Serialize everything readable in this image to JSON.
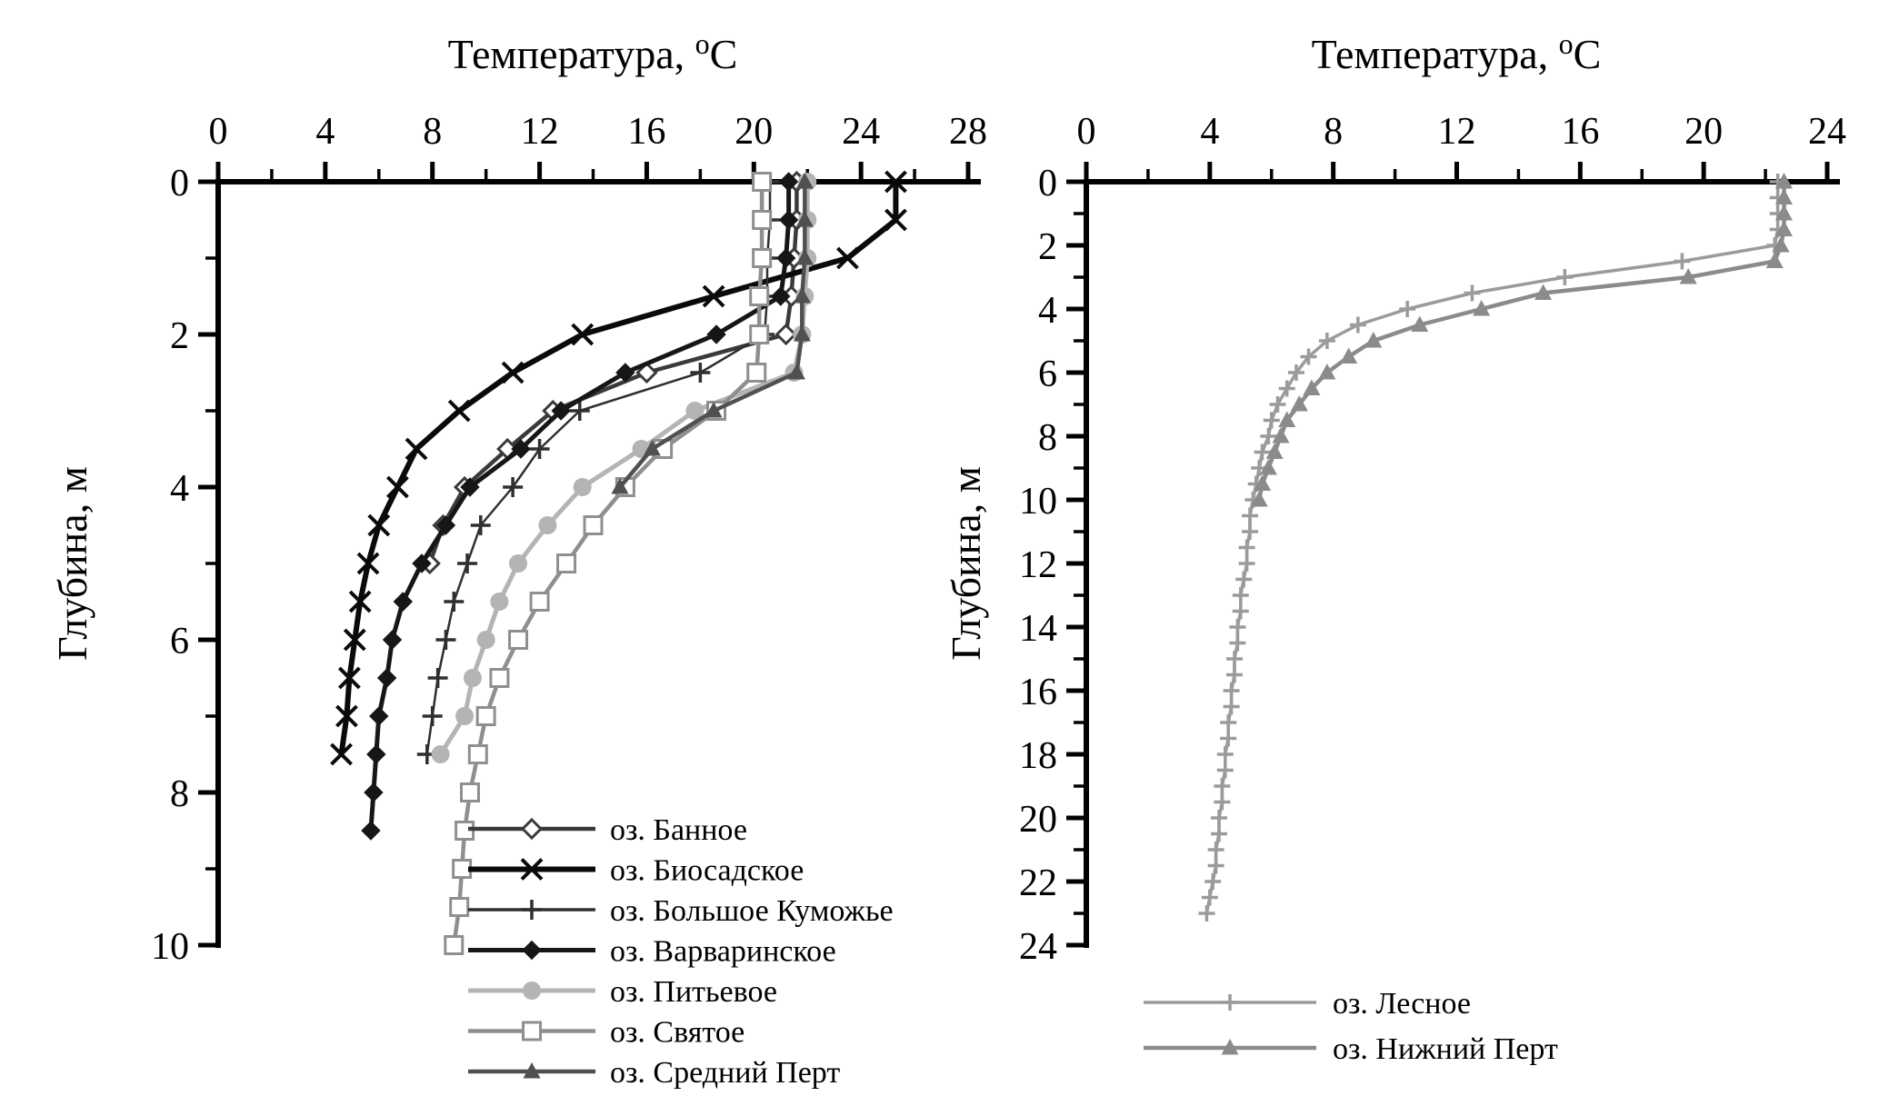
{
  "page": {
    "background": "#ffffff"
  },
  "chart_data": [
    {
      "id": "left",
      "type": "line",
      "title": {
        "prefix": "Температура,",
        "sup": "о",
        "suffix": "С"
      },
      "ylabel": "Глубина, м",
      "xlim": [
        0,
        28
      ],
      "ylim": [
        0,
        10
      ],
      "x_major_ticks": [
        0,
        4,
        8,
        12,
        16,
        20,
        24,
        28
      ],
      "x_minor_step": 2,
      "y_major_ticks": [
        0,
        2,
        4,
        6,
        8,
        10
      ],
      "y_minor_step": 1,
      "x_axis_position": "top",
      "grid": false,
      "legend_position": "inside-bottom",
      "series": [
        {
          "name": "оз. Банное",
          "slug": "bannoe",
          "marker": "diamond-open",
          "color": "#3a3a3a",
          "width": 4.5,
          "marker_size": 10,
          "points": [
            [
              21.6,
              0
            ],
            [
              21.6,
              0.5
            ],
            [
              21.5,
              1
            ],
            [
              21.4,
              1.5
            ],
            [
              21.2,
              2
            ],
            [
              16.0,
              2.5
            ],
            [
              12.5,
              3
            ],
            [
              10.8,
              3.5
            ],
            [
              9.2,
              4
            ],
            [
              8.4,
              4.5
            ],
            [
              7.9,
              5
            ]
          ]
        },
        {
          "name": "оз. Биосадское",
          "slug": "biosadskoe",
          "marker": "x",
          "color": "#0a0a0a",
          "width": 6,
          "marker_size": 11,
          "points": [
            [
              25.3,
              0
            ],
            [
              25.3,
              0.5
            ],
            [
              23.5,
              1
            ],
            [
              18.5,
              1.5
            ],
            [
              13.6,
              2
            ],
            [
              11.0,
              2.5
            ],
            [
              9.0,
              3
            ],
            [
              7.4,
              3.5
            ],
            [
              6.7,
              4
            ],
            [
              6.0,
              4.5
            ],
            [
              5.6,
              5
            ],
            [
              5.3,
              5.5
            ],
            [
              5.1,
              6
            ],
            [
              4.9,
              6.5
            ],
            [
              4.8,
              7
            ],
            [
              4.6,
              7.5
            ]
          ]
        },
        {
          "name": "оз. Большое Куможье",
          "slug": "bolshoe-kumozhe",
          "marker": "plus",
          "color": "#2f2f2f",
          "width": 2.5,
          "marker_size": 11,
          "points": [
            [
              20.6,
              0
            ],
            [
              20.6,
              0.5
            ],
            [
              20.5,
              1
            ],
            [
              20.5,
              1.5
            ],
            [
              20.4,
              2
            ],
            [
              18.0,
              2.5
            ],
            [
              13.5,
              3
            ],
            [
              12.0,
              3.5
            ],
            [
              11.0,
              4
            ],
            [
              9.8,
              4.5
            ],
            [
              9.3,
              5
            ],
            [
              8.8,
              5.5
            ],
            [
              8.5,
              6
            ],
            [
              8.2,
              6.5
            ],
            [
              8.0,
              7
            ],
            [
              7.8,
              7.5
            ]
          ]
        },
        {
          "name": "оз. Варваринское",
          "slug": "varvarinskoe",
          "marker": "diamond-filled",
          "color": "#161616",
          "width": 5,
          "marker_size": 10,
          "points": [
            [
              21.3,
              0
            ],
            [
              21.3,
              0.5
            ],
            [
              21.2,
              1
            ],
            [
              21.0,
              1.5
            ],
            [
              18.6,
              2
            ],
            [
              15.2,
              2.5
            ],
            [
              12.8,
              3
            ],
            [
              11.3,
              3.5
            ],
            [
              9.4,
              4
            ],
            [
              8.5,
              4.5
            ],
            [
              7.6,
              5
            ],
            [
              6.9,
              5.5
            ],
            [
              6.5,
              6
            ],
            [
              6.3,
              6.5
            ],
            [
              6.0,
              7
            ],
            [
              5.9,
              7.5
            ],
            [
              5.8,
              8
            ],
            [
              5.7,
              8.5
            ]
          ]
        },
        {
          "name": "оз. Питьевое",
          "slug": "pitevoe",
          "marker": "circle-filled",
          "color": "#b4b4b4",
          "width": 5,
          "marker_size": 10,
          "points": [
            [
              22.0,
              0
            ],
            [
              22.0,
              0.5
            ],
            [
              22.0,
              1
            ],
            [
              21.9,
              1.5
            ],
            [
              21.8,
              2
            ],
            [
              21.5,
              2.5
            ],
            [
              17.8,
              3
            ],
            [
              15.8,
              3.5
            ],
            [
              13.6,
              4
            ],
            [
              12.3,
              4.5
            ],
            [
              11.2,
              5
            ],
            [
              10.5,
              5.5
            ],
            [
              10.0,
              6
            ],
            [
              9.5,
              6.5
            ],
            [
              9.2,
              7
            ],
            [
              8.3,
              7.5
            ]
          ]
        },
        {
          "name": "оз. Святое",
          "slug": "svyatoe",
          "marker": "square-open",
          "color": "#8f8f8f",
          "width": 4.5,
          "marker_size": 9.5,
          "points": [
            [
              20.3,
              0
            ],
            [
              20.3,
              0.5
            ],
            [
              20.3,
              1
            ],
            [
              20.2,
              1.5
            ],
            [
              20.2,
              2
            ],
            [
              20.1,
              2.5
            ],
            [
              18.6,
              3
            ],
            [
              16.6,
              3.5
            ],
            [
              15.2,
              4
            ],
            [
              14.0,
              4.5
            ],
            [
              13.0,
              5
            ],
            [
              12.0,
              5.5
            ],
            [
              11.2,
              6
            ],
            [
              10.5,
              6.5
            ],
            [
              10.0,
              7
            ],
            [
              9.7,
              7.5
            ],
            [
              9.4,
              8
            ],
            [
              9.2,
              8.5
            ],
            [
              9.1,
              9
            ],
            [
              9.0,
              9.5
            ],
            [
              8.8,
              10
            ]
          ]
        },
        {
          "name": "оз. Средний Перт",
          "slug": "sredniy-pert",
          "marker": "triangle-filled",
          "color": "#505050",
          "width": 4.5,
          "marker_size": 10,
          "points": [
            [
              21.9,
              0
            ],
            [
              21.9,
              0.5
            ],
            [
              21.9,
              1
            ],
            [
              21.8,
              1.5
            ],
            [
              21.8,
              2
            ],
            [
              21.6,
              2.5
            ],
            [
              18.5,
              3
            ],
            [
              16.2,
              3.5
            ],
            [
              15.0,
              4
            ]
          ]
        }
      ]
    },
    {
      "id": "right",
      "type": "line",
      "title": {
        "prefix": "Температура,",
        "sup": "о",
        "suffix": "С"
      },
      "ylabel": "Глубина, м",
      "xlim": [
        0,
        24
      ],
      "ylim": [
        0,
        24
      ],
      "x_major_ticks": [
        0,
        4,
        8,
        12,
        16,
        20,
        24
      ],
      "x_minor_step": 2,
      "y_major_ticks": [
        0,
        2,
        4,
        6,
        8,
        10,
        12,
        14,
        16,
        18,
        20,
        22,
        24
      ],
      "y_minor_step": 1,
      "x_axis_position": "top",
      "grid": false,
      "legend_position": "below",
      "series": [
        {
          "name": "оз. Лесное",
          "slug": "lesnoe",
          "marker": "plus",
          "color": "#9b9b9b",
          "width": 3.5,
          "marker_size": 9,
          "points": [
            [
              22.4,
              0
            ],
            [
              22.4,
              0.5
            ],
            [
              22.4,
              1
            ],
            [
              22.4,
              1.5
            ],
            [
              22.3,
              2
            ],
            [
              19.3,
              2.5
            ],
            [
              15.5,
              3
            ],
            [
              12.5,
              3.5
            ],
            [
              10.4,
              4
            ],
            [
              8.8,
              4.5
            ],
            [
              7.8,
              5
            ],
            [
              7.2,
              5.5
            ],
            [
              6.8,
              6
            ],
            [
              6.5,
              6.5
            ],
            [
              6.2,
              7
            ],
            [
              6.0,
              7.5
            ],
            [
              5.9,
              8
            ],
            [
              5.7,
              8.5
            ],
            [
              5.6,
              9
            ],
            [
              5.5,
              9.5
            ],
            [
              5.4,
              10
            ],
            [
              5.3,
              10.5
            ],
            [
              5.3,
              11
            ],
            [
              5.2,
              11.5
            ],
            [
              5.2,
              12
            ],
            [
              5.1,
              12.5
            ],
            [
              5.0,
              13
            ],
            [
              5.0,
              13.5
            ],
            [
              4.9,
              14
            ],
            [
              4.9,
              14.5
            ],
            [
              4.8,
              15
            ],
            [
              4.8,
              15.5
            ],
            [
              4.7,
              16
            ],
            [
              4.7,
              16.5
            ],
            [
              4.6,
              17
            ],
            [
              4.6,
              17.5
            ],
            [
              4.5,
              18
            ],
            [
              4.5,
              18.5
            ],
            [
              4.4,
              19
            ],
            [
              4.4,
              19.5
            ],
            [
              4.3,
              20
            ],
            [
              4.3,
              20.5
            ],
            [
              4.2,
              21
            ],
            [
              4.2,
              21.5
            ],
            [
              4.1,
              22
            ],
            [
              4.0,
              22.5
            ],
            [
              3.9,
              23
            ]
          ]
        },
        {
          "name": "оз. Нижний Перт",
          "slug": "nizhniy-pert",
          "marker": "triangle-filled",
          "color": "#8b8b8b",
          "width": 4.5,
          "marker_size": 10,
          "points": [
            [
              22.6,
              0
            ],
            [
              22.6,
              0.5
            ],
            [
              22.6,
              1
            ],
            [
              22.6,
              1.5
            ],
            [
              22.5,
              2
            ],
            [
              22.3,
              2.5
            ],
            [
              19.5,
              3
            ],
            [
              14.8,
              3.5
            ],
            [
              12.8,
              4
            ],
            [
              10.8,
              4.5
            ],
            [
              9.3,
              5
            ],
            [
              8.5,
              5.5
            ],
            [
              7.8,
              6
            ],
            [
              7.3,
              6.5
            ],
            [
              6.9,
              7
            ],
            [
              6.5,
              7.5
            ],
            [
              6.3,
              8
            ],
            [
              6.1,
              8.5
            ],
            [
              5.9,
              9
            ],
            [
              5.7,
              9.5
            ],
            [
              5.6,
              10
            ]
          ]
        }
      ]
    }
  ]
}
